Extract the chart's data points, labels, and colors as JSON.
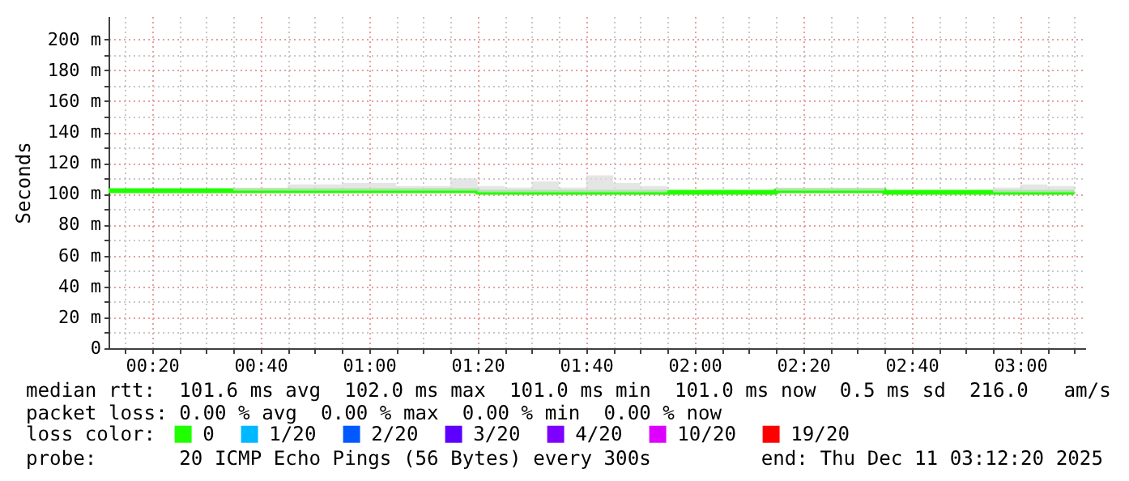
{
  "chart_data": {
    "type": "step",
    "ylabel": "Seconds",
    "legend_title": "loss color:",
    "x": [
      "2025-12-11T00:12",
      "2025-12-11T00:15",
      "2025-12-11T00:20",
      "2025-12-11T00:25",
      "2025-12-11T00:30",
      "2025-12-11T00:35",
      "2025-12-11T00:40",
      "2025-12-11T00:45",
      "2025-12-11T00:50",
      "2025-12-11T00:55",
      "2025-12-11T01:00",
      "2025-12-11T01:05",
      "2025-12-11T01:10",
      "2025-12-11T01:15",
      "2025-12-11T01:20",
      "2025-12-11T01:25",
      "2025-12-11T01:30",
      "2025-12-11T01:35",
      "2025-12-11T01:40",
      "2025-12-11T01:45",
      "2025-12-11T01:50",
      "2025-12-11T01:55",
      "2025-12-11T02:00",
      "2025-12-11T02:05",
      "2025-12-11T02:10",
      "2025-12-11T02:15",
      "2025-12-11T02:20",
      "2025-12-11T02:25",
      "2025-12-11T02:30",
      "2025-12-11T02:35",
      "2025-12-11T02:40",
      "2025-12-11T02:45",
      "2025-12-11T02:50",
      "2025-12-11T02:55",
      "2025-12-11T03:00",
      "2025-12-11T03:05",
      "2025-12-11T03:10"
    ],
    "series": [
      {
        "name": "0",
        "color": "#20ff00",
        "values": [
          102,
          102,
          102,
          102,
          102,
          102,
          102,
          102,
          102,
          102,
          102,
          102,
          102,
          102,
          101,
          101,
          101,
          101,
          101,
          101,
          101,
          101,
          101,
          101,
          101,
          102,
          102,
          102,
          102,
          101,
          101,
          101,
          101,
          101,
          101,
          101,
          101
        ],
        "lower": [
          102,
          102,
          102,
          102,
          102,
          102,
          102,
          102,
          102,
          102,
          102,
          102,
          102,
          102,
          101,
          101,
          101,
          101,
          101,
          101,
          101,
          101,
          101,
          101,
          101,
          102,
          102,
          102,
          102,
          101,
          101,
          101,
          101,
          101,
          101,
          101,
          101
        ],
        "upper": [
          102,
          102,
          102,
          102,
          102,
          104,
          104,
          106,
          106,
          107,
          107,
          105,
          105,
          110,
          105,
          104,
          108,
          104,
          112,
          107,
          105,
          101,
          101,
          101,
          101,
          104,
          104,
          104,
          104,
          101,
          101,
          101,
          101,
          104,
          106,
          105,
          105
        ]
      },
      {
        "name": "1/20",
        "color": "#00b8ff",
        "values": [
          null,
          null,
          null,
          null,
          null,
          null,
          null,
          null,
          null,
          null,
          null,
          null,
          null,
          null,
          null,
          null,
          null,
          null,
          null,
          null,
          null,
          null,
          null,
          null,
          null,
          null,
          null,
          null,
          null,
          null,
          null,
          null,
          null,
          null,
          null,
          null,
          null
        ]
      },
      {
        "name": "2/20",
        "color": "#0059ff",
        "values": [
          null,
          null,
          null,
          null,
          null,
          null,
          null,
          null,
          null,
          null,
          null,
          null,
          null,
          null,
          null,
          null,
          null,
          null,
          null,
          null,
          null,
          null,
          null,
          null,
          null,
          null,
          null,
          null,
          null,
          null,
          null,
          null,
          null,
          null,
          null,
          null,
          null
        ]
      },
      {
        "name": "3/20",
        "color": "#5e00ff",
        "values": [
          null,
          null,
          null,
          null,
          null,
          null,
          null,
          null,
          null,
          null,
          null,
          null,
          null,
          null,
          null,
          null,
          null,
          null,
          null,
          null,
          null,
          null,
          null,
          null,
          null,
          null,
          null,
          null,
          null,
          null,
          null,
          null,
          null,
          null,
          null,
          null,
          null
        ]
      },
      {
        "name": "4/20",
        "color": "#7e00ff",
        "values": [
          null,
          null,
          null,
          null,
          null,
          null,
          null,
          null,
          null,
          null,
          null,
          null,
          null,
          null,
          null,
          null,
          null,
          null,
          null,
          null,
          null,
          null,
          null,
          null,
          null,
          null,
          null,
          null,
          null,
          null,
          null,
          null,
          null,
          null,
          null,
          null,
          null
        ]
      },
      {
        "name": "10/20",
        "color": "#dd00ff",
        "values": [
          null,
          null,
          null,
          null,
          null,
          null,
          null,
          null,
          null,
          null,
          null,
          null,
          null,
          null,
          null,
          null,
          null,
          null,
          null,
          null,
          null,
          null,
          null,
          null,
          null,
          null,
          null,
          null,
          null,
          null,
          null,
          null,
          null,
          null,
          null,
          null,
          null
        ]
      },
      {
        "name": "19/20",
        "color": "#ff0000",
        "values": [
          null,
          null,
          null,
          null,
          null,
          null,
          null,
          null,
          null,
          null,
          null,
          null,
          null,
          null,
          null,
          null,
          null,
          null,
          null,
          null,
          null,
          null,
          null,
          null,
          null,
          null,
          null,
          null,
          null,
          null,
          null,
          null,
          null,
          null,
          null,
          null,
          null
        ]
      }
    ],
    "xlim": [
      "2025-12-11T00:12",
      "2025-12-11T03:12"
    ],
    "xticks": [
      {
        "value": "2025-12-11T00:15",
        "label": null
      },
      {
        "value": "2025-12-11T00:20",
        "label": "00:20"
      },
      {
        "value": "2025-12-11T00:25",
        "label": null
      },
      {
        "value": "2025-12-11T00:30",
        "label": null
      },
      {
        "value": "2025-12-11T00:35",
        "label": null
      },
      {
        "value": "2025-12-11T00:40",
        "label": "00:40"
      },
      {
        "value": "2025-12-11T00:45",
        "label": null
      },
      {
        "value": "2025-12-11T00:50",
        "label": null
      },
      {
        "value": "2025-12-11T00:55",
        "label": null
      },
      {
        "value": "2025-12-11T01:00",
        "label": "01:00"
      },
      {
        "value": "2025-12-11T01:05",
        "label": null
      },
      {
        "value": "2025-12-11T01:10",
        "label": null
      },
      {
        "value": "2025-12-11T01:15",
        "label": null
      },
      {
        "value": "2025-12-11T01:20",
        "label": "01:20"
      },
      {
        "value": "2025-12-11T01:25",
        "label": null
      },
      {
        "value": "2025-12-11T01:30",
        "label": null
      },
      {
        "value": "2025-12-11T01:35",
        "label": null
      },
      {
        "value": "2025-12-11T01:40",
        "label": "01:40"
      },
      {
        "value": "2025-12-11T01:45",
        "label": null
      },
      {
        "value": "2025-12-11T01:50",
        "label": null
      },
      {
        "value": "2025-12-11T01:55",
        "label": null
      },
      {
        "value": "2025-12-11T02:00",
        "label": "02:00"
      },
      {
        "value": "2025-12-11T02:05",
        "label": null
      },
      {
        "value": "2025-12-11T02:10",
        "label": null
      },
      {
        "value": "2025-12-11T02:15",
        "label": null
      },
      {
        "value": "2025-12-11T02:20",
        "label": "02:20"
      },
      {
        "value": "2025-12-11T02:25",
        "label": null
      },
      {
        "value": "2025-12-11T02:30",
        "label": null
      },
      {
        "value": "2025-12-11T02:35",
        "label": null
      },
      {
        "value": "2025-12-11T02:40",
        "label": "02:40"
      },
      {
        "value": "2025-12-11T02:45",
        "label": null
      },
      {
        "value": "2025-12-11T02:50",
        "label": null
      },
      {
        "value": "2025-12-11T02:55",
        "label": null
      },
      {
        "value": "2025-12-11T03:00",
        "label": "03:00"
      },
      {
        "value": "2025-12-11T03:05",
        "label": null
      },
      {
        "value": "2025-12-11T03:10",
        "label": null
      }
    ],
    "ylim": [
      0,
      215
    ],
    "yticks": [
      0,
      {
        "value": 10,
        "label": null
      },
      {
        "value": 20,
        "label": "20 m"
      },
      {
        "value": 30,
        "label": null
      },
      {
        "value": 40,
        "label": "40 m"
      },
      {
        "value": 50,
        "label": null
      },
      {
        "value": 60,
        "label": "60 m"
      },
      {
        "value": 70,
        "label": null
      },
      {
        "value": 80,
        "label": "80 m"
      },
      {
        "value": 90,
        "label": null
      },
      {
        "value": 100,
        "label": "100 m"
      },
      {
        "value": 110,
        "label": null
      },
      {
        "value": 120,
        "label": "120 m"
      },
      {
        "value": 130,
        "label": null
      },
      {
        "value": 140,
        "label": "140 m"
      },
      {
        "value": 150,
        "label": null
      },
      {
        "value": 160,
        "label": "160 m"
      },
      {
        "value": 170,
        "label": null
      },
      {
        "value": 180,
        "label": "180 m"
      },
      {
        "value": 190,
        "label": null
      },
      {
        "value": 200,
        "label": "200 m"
      }
    ],
    "grid": true,
    "legend": "bottom",
    "annotations": [
      "median rtt:  101.6 ms avg  102.0 ms max  101.0 ms min  101.0 ms now  0.5 ms sd  216.0   am/s",
      "packet loss: 0.00 % avg  0.00 % max  0.00 % min  0.00 % now",
      "probe:       20 ICMP Echo Pings (56 Bytes) every 300s",
      "end: Thu Dec 11 03:12:20 2025"
    ]
  }
}
